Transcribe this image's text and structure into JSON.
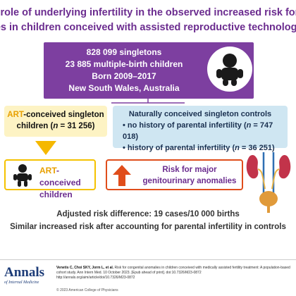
{
  "title": {
    "line1": "What is the role of underlying infertility in the observed increased risk for congenital",
    "line2": "anomalies in children conceived with assisted reproductive technology (ART)?"
  },
  "cohort": {
    "line1": "828 099 singletons",
    "line2": "23 885 multiple-birth children",
    "line3": "Born 2009–2017",
    "line4": "New South Wales, Australia"
  },
  "art_group": {
    "prefix": "ART",
    "label": "-conceived singleton children (",
    "n_label": "n",
    "n_value": " = 31 256)"
  },
  "controls": {
    "heading": "Naturally conceived singleton controls",
    "item1_text": "no history of parental infertility (",
    "item1_n": " = 747 018)",
    "item2_text": "history of parental infertility (",
    "item2_n": " = 36 251)",
    "n_label": "n"
  },
  "outcome_group": {
    "prefix": "ART",
    "label": "-conceived children"
  },
  "risk": {
    "label": "Risk for major genitourinary anomalies"
  },
  "results": {
    "line1": "Adjusted risk difference: 19 cases/10 000 births",
    "line2": "Similar increased risk after accounting for parental infertility in controls"
  },
  "footer": {
    "logo_name": "Annals",
    "logo_sub": "of Internal Medicine",
    "authors": "Venetis C, Choi SKY, Jorm L, et al.",
    "citation": "Risk for congenital anomalies in children conceived with medically assisted fertility treatment: A population-based cohort study. Ann Intern Med. 10 October 2023. [Epub ahead of print]. doi:10.7326/M23-0872",
    "url": "http://annals.org/aim/article/doi/10.7326/M23-0872",
    "copyright": "© 2023 American College of Physicians"
  },
  "colors": {
    "purple": "#7d3fa0",
    "yellow_box": "#fdf3c4",
    "blue_box": "#cfe6f2",
    "orange_arrow": "#f5b800",
    "red_arrow": "#e04d1b"
  },
  "icons": [
    "baby-icon",
    "child-icon",
    "kidney-bladder-icon",
    "arrow-up-icon",
    "down-arrow-icon"
  ]
}
